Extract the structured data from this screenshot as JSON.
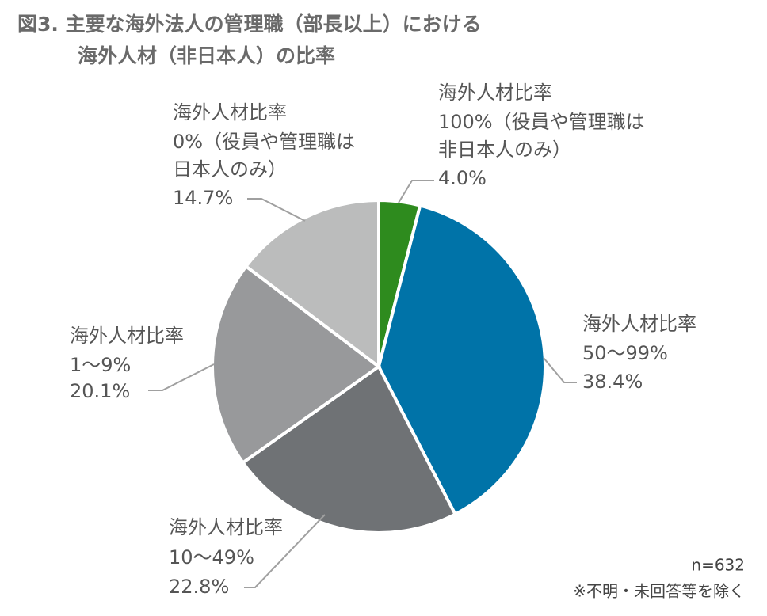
{
  "chart_data": {
    "type": "pie",
    "title": [
      "図3. 主要な海外法人の管理職（部長以上）における",
      "海外人材（非日本人）の比率"
    ],
    "categories": [
      [
        "海外人材比率",
        "100%（役員や管理職は",
        "非日本人のみ）"
      ],
      [
        "海外人材比率",
        "50〜99%"
      ],
      [
        "海外人材比率",
        "10〜49%"
      ],
      [
        "海外人材比率",
        "1〜9%"
      ],
      [
        "海外人材比率",
        "0%（役員や管理職は",
        "日本人のみ）"
      ]
    ],
    "values": [
      4.0,
      38.4,
      22.8,
      20.1,
      14.7
    ],
    "value_labels": [
      "4.0%",
      "38.4%",
      "22.8%",
      "20.1%",
      "14.7%"
    ],
    "colors": [
      "#2e8b1e",
      "#0073a8",
      "#6f7275",
      "#98999b",
      "#bbbcbc"
    ],
    "notes": [
      "n=632",
      "※不明・未回答等を除く"
    ]
  }
}
